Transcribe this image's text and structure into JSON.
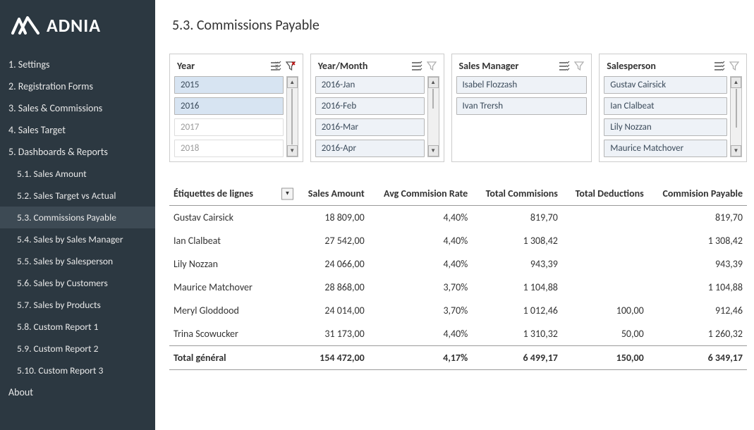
{
  "brand": "ADNIA",
  "page_title": "5.3. Commissions Payable",
  "sidebar": {
    "items": [
      {
        "label": "1. Settings"
      },
      {
        "label": "2. Registration Forms"
      },
      {
        "label": "3. Sales & Commissions"
      },
      {
        "label": "4. Sales Target"
      },
      {
        "label": "5. Dashboards & Reports"
      }
    ],
    "subs": [
      {
        "label": "5.1. Sales Amount",
        "active": false
      },
      {
        "label": "5.2. Sales Target vs Actual",
        "active": false
      },
      {
        "label": "5.3. Commissions Payable",
        "active": true
      },
      {
        "label": "5.4. Sales by Sales Manager",
        "active": false
      },
      {
        "label": "5.5. Sales by Salesperson",
        "active": false
      },
      {
        "label": "5.6. Sales by Customers",
        "active": false
      },
      {
        "label": "5.7. Sales by Products",
        "active": false
      },
      {
        "label": "5.8. Custom Report 1",
        "active": false
      },
      {
        "label": "5.9. Custom Report 2",
        "active": false
      },
      {
        "label": "5.10. Custom Report 3",
        "active": false
      }
    ],
    "footer": "About"
  },
  "slicers": {
    "year": {
      "title": "Year",
      "items": [
        {
          "label": "2015",
          "state": "sel"
        },
        {
          "label": "2016",
          "state": "sel"
        },
        {
          "label": "2017",
          "state": "dim"
        },
        {
          "label": "2018",
          "state": "dim"
        }
      ],
      "clear_active": true
    },
    "yearmonth": {
      "title": "Year/Month",
      "items": [
        {
          "label": "2016-Jan",
          "state": ""
        },
        {
          "label": "2016-Feb",
          "state": ""
        },
        {
          "label": "2016-Mar",
          "state": ""
        },
        {
          "label": "2016-Apr",
          "state": ""
        }
      ],
      "clear_active": false
    },
    "manager": {
      "title": "Sales Manager",
      "items": [
        {
          "label": "Isabel Flozzash",
          "state": ""
        },
        {
          "label": "Ivan Trersh",
          "state": ""
        }
      ],
      "clear_active": false
    },
    "salesperson": {
      "title": "Salesperson",
      "items": [
        {
          "label": "Gustav Cairsick",
          "state": ""
        },
        {
          "label": "Ian Clalbeat",
          "state": ""
        },
        {
          "label": "Lily Nozzan",
          "state": ""
        },
        {
          "label": "Maurice Matchover",
          "state": ""
        }
      ],
      "clear_active": false
    }
  },
  "table": {
    "headers": {
      "rowlabels": "Étiquettes de lignes",
      "sales": "Sales Amount",
      "rate": "Avg Commision Rate",
      "commissions": "Total Commisions",
      "deductions": "Total Deductions",
      "payable": "Commision Payable"
    },
    "rows": [
      {
        "name": "Gustav Cairsick",
        "sales": "18 809,00",
        "rate": "4,40%",
        "comm": "819,70",
        "ded": "",
        "pay": "819,70"
      },
      {
        "name": "Ian Clalbeat",
        "sales": "27 542,00",
        "rate": "4,40%",
        "comm": "1 308,42",
        "ded": "",
        "pay": "1 308,42"
      },
      {
        "name": "Lily Nozzan",
        "sales": "24 066,00",
        "rate": "4,40%",
        "comm": "943,39",
        "ded": "",
        "pay": "943,39"
      },
      {
        "name": "Maurice Matchover",
        "sales": "28 868,00",
        "rate": "3,70%",
        "comm": "1 104,88",
        "ded": "",
        "pay": "1 104,88"
      },
      {
        "name": "Meryl Gloddood",
        "sales": "24 014,00",
        "rate": "3,70%",
        "comm": "1 012,46",
        "ded": "100,00",
        "pay": "912,46"
      },
      {
        "name": "Trina Scowucker",
        "sales": "31 173,00",
        "rate": "4,40%",
        "comm": "1 310,32",
        "ded": "50,00",
        "pay": "1 260,32"
      }
    ],
    "total": {
      "name": "Total général",
      "sales": "154 472,00",
      "rate": "4,17%",
      "comm": "6 499,17",
      "ded": "150,00",
      "pay": "6 349,17"
    }
  },
  "colors": {
    "sidebar_bg": "#2c3841",
    "sidebar_active": "#3d4a54",
    "slicer_item_bg": "#eef2f7",
    "slicer_item_sel": "#d7e4f2",
    "border": "#cccccc"
  }
}
